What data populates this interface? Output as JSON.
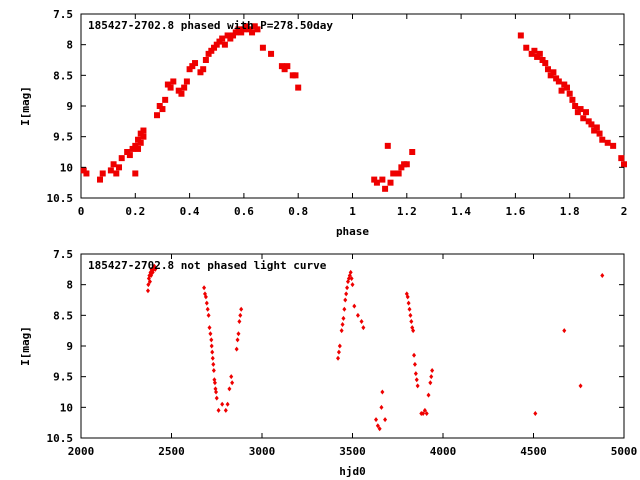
{
  "colors": {
    "points": "#ee0000",
    "axes": "#000000",
    "background": "#ffffff"
  },
  "chart_data": [
    {
      "type": "scatter",
      "title": "185427-2702.8 phased with P=278.50day",
      "xlabel": "phase",
      "ylabel": "I[mag]",
      "xlim": [
        0,
        2
      ],
      "ylim": [
        7.5,
        10.5
      ],
      "y_inverted": true,
      "grid": false,
      "marker": "filled-square",
      "xticks": [
        0,
        0.2,
        0.4,
        0.6,
        0.8,
        1,
        1.2,
        1.4,
        1.6,
        1.8,
        2
      ],
      "xtick_labels": [
        "0",
        "0.2",
        "0.4",
        "0.6",
        "0.8",
        "1",
        "1.2",
        "1.4",
        "1.6",
        "1.8",
        "2"
      ],
      "yticks": [
        7.5,
        8,
        8.5,
        9,
        9.5,
        10,
        10.5
      ],
      "ytick_labels": [
        "7.5",
        "8",
        "8.5",
        "9",
        "9.5",
        "10",
        "10.5"
      ],
      "series": [
        {
          "x": [
            0.01,
            0.02,
            0.07,
            0.08,
            0.11,
            0.12,
            0.13,
            0.14,
            0.15,
            0.17,
            0.18,
            0.19,
            0.2,
            0.21,
            0.2,
            0.21,
            0.22,
            0.22,
            0.23,
            0.23,
            0.28,
            0.29,
            0.3,
            0.31,
            0.32,
            0.33,
            0.34,
            0.36,
            0.37,
            0.38,
            0.39,
            0.4,
            0.41,
            0.42,
            0.44,
            0.45,
            0.46,
            0.47,
            0.48,
            0.49,
            0.5,
            0.51,
            0.52,
            0.53,
            0.54,
            0.55,
            0.56,
            0.57,
            0.58,
            0.59,
            0.6,
            0.61,
            0.62,
            0.63,
            0.64,
            0.65,
            0.67,
            0.7,
            0.74,
            0.75,
            0.76,
            0.78,
            0.79,
            0.8,
            1.08,
            1.09,
            1.11,
            1.12,
            1.13,
            1.14,
            1.15,
            1.17,
            1.18,
            1.19,
            1.2,
            1.22,
            1.62,
            1.64,
            1.66,
            1.67,
            1.68,
            1.69,
            1.7,
            1.71,
            1.72,
            1.73,
            1.74,
            1.75,
            1.76,
            1.77,
            1.78,
            1.79,
            1.8,
            1.81,
            1.82,
            1.83,
            1.84,
            1.85,
            1.86,
            1.87,
            1.88,
            1.89,
            1.9,
            1.91,
            1.92,
            1.94,
            1.96,
            1.99,
            2.0
          ],
          "y": [
            10.05,
            10.1,
            10.2,
            10.1,
            10.05,
            9.95,
            10.1,
            10.0,
            9.85,
            9.75,
            9.8,
            9.7,
            9.65,
            9.7,
            10.1,
            9.55,
            9.45,
            9.6,
            9.4,
            9.5,
            9.15,
            9.0,
            9.05,
            8.9,
            8.65,
            8.7,
            8.6,
            8.75,
            8.8,
            8.7,
            8.6,
            8.4,
            8.35,
            8.3,
            8.45,
            8.4,
            8.25,
            8.15,
            8.1,
            8.05,
            8.0,
            7.95,
            7.9,
            8.0,
            7.85,
            7.9,
            7.85,
            7.8,
            7.75,
            7.8,
            7.75,
            7.7,
            7.75,
            7.8,
            7.7,
            7.75,
            8.05,
            8.15,
            8.35,
            8.4,
            8.35,
            8.5,
            8.5,
            8.7,
            10.2,
            10.25,
            10.2,
            10.35,
            9.65,
            10.25,
            10.1,
            10.1,
            10.0,
            9.95,
            9.95,
            9.75,
            7.85,
            8.05,
            8.15,
            8.1,
            8.2,
            8.15,
            8.25,
            8.3,
            8.4,
            8.5,
            8.45,
            8.55,
            8.6,
            8.75,
            8.65,
            8.7,
            8.8,
            8.9,
            9.0,
            9.1,
            9.05,
            9.2,
            9.1,
            9.25,
            9.3,
            9.4,
            9.35,
            9.45,
            9.55,
            9.6,
            9.65,
            9.85,
            9.95
          ]
        }
      ]
    },
    {
      "type": "scatter",
      "title": "185427-2702.8 not phased light curve",
      "xlabel": "hjd0",
      "ylabel": "I[mag]",
      "xlim": [
        2000,
        5000
      ],
      "ylim": [
        7.5,
        10.5
      ],
      "y_inverted": true,
      "grid": false,
      "marker": "small-diamond",
      "xticks": [
        2000,
        2500,
        3000,
        3500,
        4000,
        4500,
        5000
      ],
      "xtick_labels": [
        "2000",
        "2500",
        "3000",
        "3500",
        "4000",
        "4500",
        "5000"
      ],
      "yticks": [
        7.5,
        8,
        8.5,
        9,
        9.5,
        10,
        10.5
      ],
      "ytick_labels": [
        "7.5",
        "8",
        "8.5",
        "9",
        "9.5",
        "10",
        "10.5"
      ],
      "series": [
        {
          "x": [
            2370,
            2372,
            2375,
            2378,
            2381,
            2384,
            2387,
            2390,
            2393,
            2396,
            2400,
            2405,
            2410,
            2680,
            2685,
            2690,
            2695,
            2700,
            2705,
            2710,
            2715,
            2720,
            2722,
            2725,
            2728,
            2731,
            2734,
            2737,
            2740,
            2743,
            2746,
            2750,
            2760,
            2780,
            2800,
            2810,
            2820,
            2830,
            2835,
            2860,
            2865,
            2870,
            2875,
            2880,
            2885,
            3420,
            3425,
            3430,
            3440,
            3445,
            3450,
            3455,
            3460,
            3465,
            3470,
            3475,
            3480,
            3485,
            3490,
            3495,
            3500,
            3510,
            3530,
            3550,
            3560,
            3630,
            3640,
            3650,
            3660,
            3665,
            3680,
            3800,
            3805,
            3810,
            3815,
            3820,
            3825,
            3830,
            3835,
            3840,
            3845,
            3850,
            3855,
            3860,
            3880,
            3890,
            3900,
            3910,
            3920,
            3930,
            3935,
            3940,
            4510,
            4670,
            4760,
            4880
          ],
          "y": [
            8.1,
            8.0,
            7.9,
            7.85,
            7.95,
            7.8,
            7.85,
            7.75,
            7.8,
            7.8,
            7.75,
            7.7,
            7.75,
            8.05,
            8.15,
            8.2,
            8.3,
            8.4,
            8.5,
            8.7,
            8.8,
            8.9,
            9.0,
            9.1,
            9.2,
            9.3,
            9.4,
            9.55,
            9.6,
            9.7,
            9.75,
            9.85,
            10.05,
            9.95,
            10.05,
            9.95,
            9.7,
            9.5,
            9.6,
            9.05,
            8.9,
            8.8,
            8.6,
            8.5,
            8.4,
            9.2,
            9.1,
            9.0,
            8.75,
            8.65,
            8.55,
            8.4,
            8.25,
            8.15,
            8.05,
            7.95,
            7.9,
            7.85,
            7.8,
            7.9,
            8.0,
            8.35,
            8.5,
            8.6,
            8.7,
            10.2,
            10.3,
            10.35,
            10.0,
            9.75,
            10.2,
            8.15,
            8.2,
            8.3,
            8.4,
            8.5,
            8.6,
            8.7,
            8.75,
            9.15,
            9.3,
            9.45,
            9.55,
            9.65,
            10.1,
            10.1,
            10.05,
            10.1,
            9.8,
            9.6,
            9.5,
            9.4,
            10.1,
            8.75,
            9.65,
            7.85
          ]
        }
      ]
    }
  ]
}
